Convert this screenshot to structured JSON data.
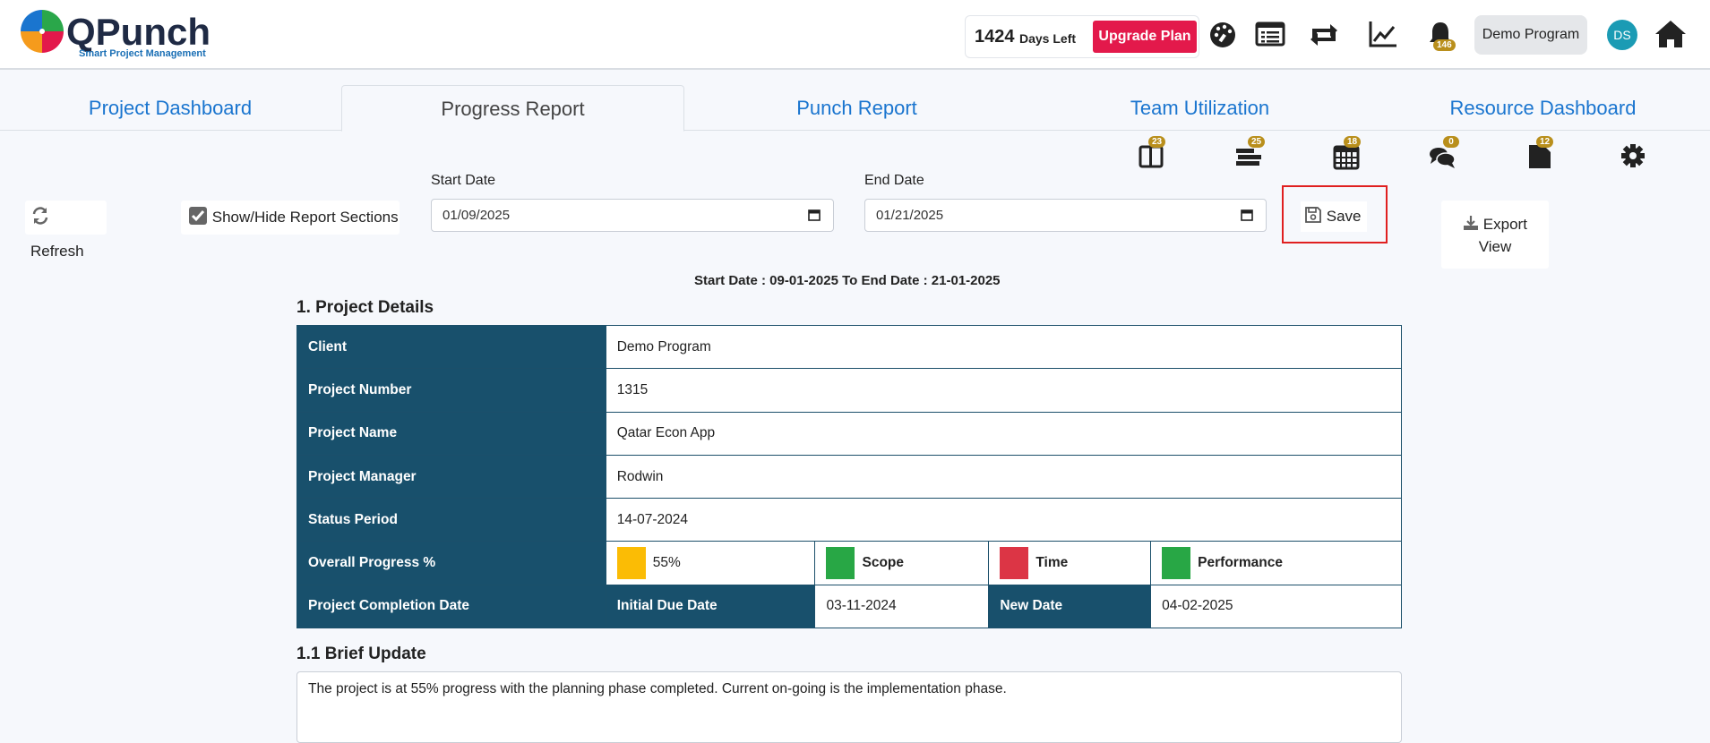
{
  "header": {
    "logo_text": "QPunch",
    "logo_tagline": "Smart Project Management",
    "days_count": "1424",
    "days_label": "Days Left",
    "upgrade_label": "Upgrade Plan",
    "notification_count": "146",
    "program_label": "Demo Program",
    "avatar_initials": "DS",
    "icons": [
      "dashboard-icon",
      "list-icon",
      "retweet-icon",
      "chart-line-icon",
      "bell-icon",
      "home-icon"
    ]
  },
  "tabs": [
    {
      "label": "Project Dashboard",
      "active": false
    },
    {
      "label": "Progress Report",
      "active": true
    },
    {
      "label": "Punch Report",
      "active": false
    },
    {
      "label": "Team Utilization",
      "active": false
    },
    {
      "label": "Resource Dashboard",
      "active": false
    }
  ],
  "sub_icons": [
    {
      "icon": "columns-icon",
      "badge": "23"
    },
    {
      "icon": "stacked-bars-icon",
      "badge": "25"
    },
    {
      "icon": "calendar-icon",
      "badge": "18"
    },
    {
      "icon": "comments-icon",
      "badge": "0"
    },
    {
      "icon": "file-icon",
      "badge": "12"
    },
    {
      "icon": "gear-icon",
      "badge": ""
    }
  ],
  "toolbar": {
    "refresh_label": "Refresh",
    "toggle_label": "Show/Hide Report Sections",
    "start_date_label": "Start Date",
    "start_date_value": "01/09/2025",
    "end_date_label": "End Date",
    "end_date_value": "01/21/2025",
    "save_label": "Save",
    "export_label_1": "Export",
    "export_label_2": "View"
  },
  "range_text": "Start Date : 09-01-2025 To End Date : 21-01-2025",
  "project_details": {
    "title": "1. Project Details",
    "rows": [
      {
        "label": "Client",
        "value": "Demo Program"
      },
      {
        "label": "Project Number",
        "value": "1315"
      },
      {
        "label": "Project Name",
        "value": "Qatar Econ App"
      },
      {
        "label": "Project Manager",
        "value": "Rodwin"
      },
      {
        "label": "Status Period",
        "value": "14-07-2024"
      }
    ],
    "progress": {
      "label": "Overall Progress %",
      "value": "55%",
      "value_color": "#fbbc05",
      "scope_label": "Scope",
      "scope_color": "#28a745",
      "time_label": "Time",
      "time_color": "#dc3545",
      "performance_label": "Performance",
      "performance_color": "#28a745"
    },
    "completion": {
      "label": "Project Completion Date",
      "initial_label": "Initial Due Date",
      "initial_value": "03-11-2024",
      "new_label": "New Date",
      "new_value": "04-02-2025"
    }
  },
  "brief_update": {
    "title": "1.1 Brief Update",
    "text": "The project is at 55% progress with the planning phase completed. Current on-going is the implementation phase."
  }
}
